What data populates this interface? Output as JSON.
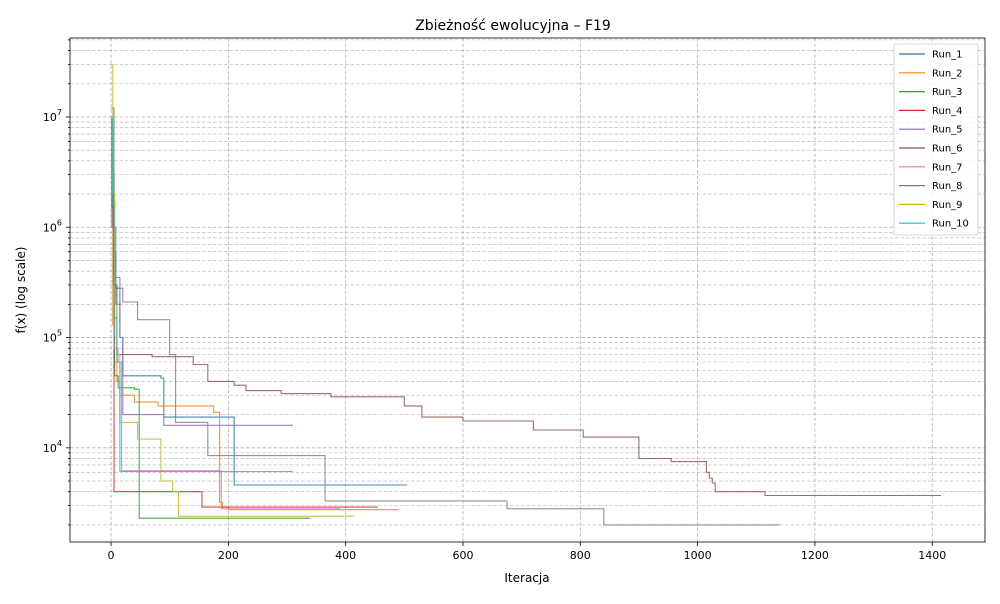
{
  "chart_data": {
    "type": "line",
    "title": "Zbieżność ewolucyjna – F19",
    "xlabel": "Iteracja",
    "ylabel": "f(x) (log scale)",
    "xlim": [
      -70,
      1490
    ],
    "ylim": [
      1400,
      52000000
    ],
    "yscale": "log",
    "grid": true,
    "legend_position": "top-right",
    "x_ticks": [
      0,
      200,
      400,
      600,
      800,
      1000,
      1200,
      1400
    ],
    "y_major_ticks": [
      10000,
      100000,
      1000000,
      10000000
    ],
    "y_major_labels": [
      {
        "base": "10",
        "exp": "4"
      },
      {
        "base": "10",
        "exp": "5"
      },
      {
        "base": "10",
        "exp": "6"
      },
      {
        "base": "10",
        "exp": "7"
      }
    ],
    "series": [
      {
        "name": "Run_1",
        "color": "#1f77b4",
        "x": [
          0,
          2,
          5,
          8,
          15,
          20,
          85,
          90,
          205,
          210,
          505
        ],
        "y": [
          9000000,
          3000000,
          600000,
          280000,
          100000,
          45000,
          43000,
          19000,
          19000,
          4600,
          4600
        ]
      },
      {
        "name": "Run_2",
        "color": "#ff7f0e",
        "x": [
          0,
          1,
          3,
          5,
          10,
          15,
          40,
          80,
          175,
          185,
          190,
          200,
          490
        ],
        "y": [
          9500000,
          1000000,
          130000,
          60000,
          40000,
          30000,
          26000,
          24000,
          21000,
          3200,
          2900,
          2750,
          2750
        ]
      },
      {
        "name": "Run_3",
        "color": "#2ca02c",
        "x": [
          0,
          3,
          6,
          12,
          40,
          48,
          340
        ],
        "y": [
          5000000,
          1700000,
          45000,
          35000,
          34000,
          2300,
          2300
        ]
      },
      {
        "name": "Run_4",
        "color": "#d62728",
        "x": [
          0,
          3,
          5,
          150,
          155,
          455
        ],
        "y": [
          1700000,
          1000000,
          4000,
          4000,
          2900,
          2900
        ]
      },
      {
        "name": "Run_5",
        "color": "#9467bd",
        "x": [
          0,
          3,
          8,
          15,
          20,
          85,
          90,
          310
        ],
        "y": [
          8000000,
          1000000,
          200000,
          100000,
          20000,
          20000,
          16000,
          16000
        ]
      },
      {
        "name": "Run_6",
        "color": "#8c564b",
        "x": [
          0,
          2,
          4,
          10,
          60,
          70,
          140,
          165,
          200,
          210,
          230,
          290,
          375,
          495,
          500,
          530,
          600,
          720,
          800,
          805,
          900,
          955,
          1010,
          1015,
          1020,
          1025,
          1030,
          1115,
          1415
        ],
        "y": [
          9500000,
          1500000,
          300000,
          70000,
          70000,
          67000,
          57000,
          40000,
          40000,
          37000,
          33000,
          31000,
          29000,
          29000,
          24000,
          19000,
          17500,
          14500,
          14500,
          12500,
          8000,
          7500,
          7500,
          6000,
          5300,
          4800,
          4000,
          3700,
          3700
        ]
      },
      {
        "name": "Run_7",
        "color": "#e377c2",
        "x": [
          0,
          5,
          12,
          18,
          185,
          188,
          390
        ],
        "y": [
          3000000,
          80000,
          60000,
          6200,
          6200,
          2800,
          2800
        ]
      },
      {
        "name": "Run_8",
        "color": "#7f7f7f",
        "x": [
          0,
          5,
          15,
          20,
          40,
          45,
          70,
          100,
          110,
          160,
          165,
          362,
          365,
          670,
          675,
          835,
          840,
          1140
        ],
        "y": [
          12000000,
          350000,
          280000,
          210000,
          210000,
          145000,
          145000,
          70000,
          17000,
          17000,
          8500,
          8500,
          3300,
          3300,
          2800,
          2800,
          2000,
          2000
        ]
      },
      {
        "name": "Run_9",
        "color": "#bcbd22",
        "x": [
          0,
          3,
          6,
          10,
          15,
          30,
          45,
          80,
          85,
          105,
          115,
          415
        ],
        "y": [
          30000000,
          2000000,
          200000,
          70000,
          17000,
          17000,
          12000,
          12000,
          5000,
          4000,
          2400,
          2400
        ]
      },
      {
        "name": "Run_10",
        "color": "#17becf",
        "x": [
          0,
          2,
          5,
          10,
          15,
          310
        ],
        "y": [
          10000000,
          1600000,
          150000,
          60000,
          6100,
          6100
        ]
      }
    ]
  }
}
